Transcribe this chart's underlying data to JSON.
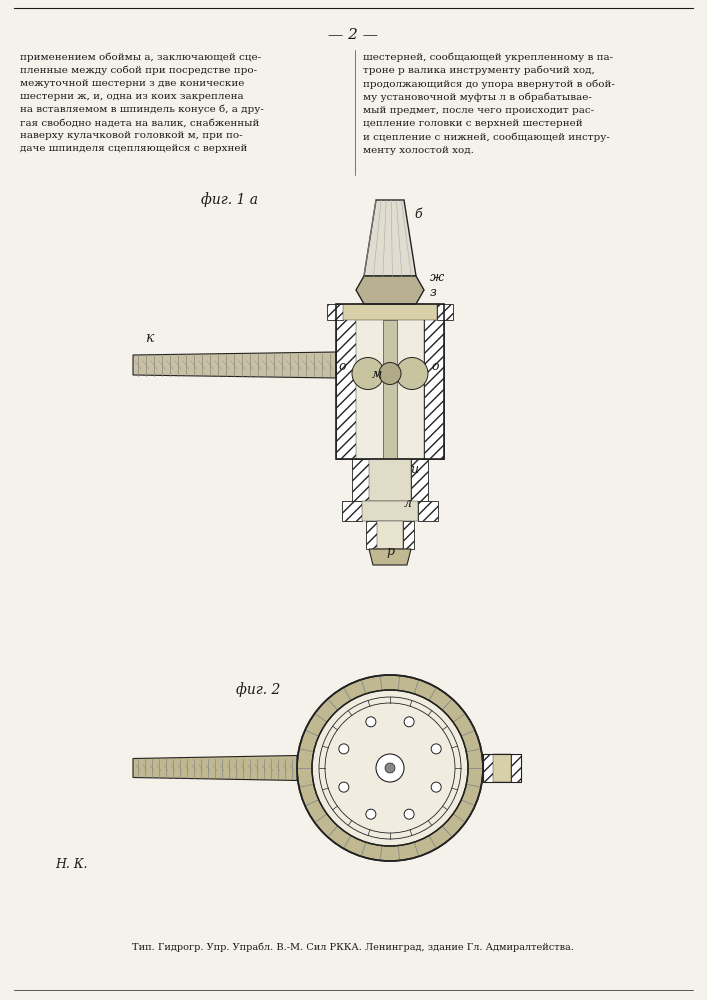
{
  "page_number": "— 2 —",
  "text_left": "применением обоймы а, заключающей сце-\nпленные между собой при посредстве про-\nмежуточной шестерни з две конические\nшестерни ж, и, одна из коих закреплена\nна вставляемом в шпиндель конусе б, а дру-\nгая свободно надета на валик, снабженный\nнаверху кулачковой головкой м, при по-\nдаче шпинделя сцепляющейся с верхней",
  "text_right": "шестерней, сообщающей укрепленному в па-\nтроне р валика инструменту рабочий ход,\nпродолжающийся до упора ввернутой в обой-\nму установочной муфты л в обрабатывае-\nмый предмет, после чего происходит рас-\nцепление головки с верхней шестерней\nи сцепление с нижней, сообщающей инстру-\nменту холостой ход.",
  "fig1_label": "фиг. 1 а",
  "fig2_label": "фиг. 2",
  "label_k": "к",
  "label_b": "б",
  "label_zh": "ж",
  "label_s": "з",
  "label_o1": "о",
  "label_o2": "о",
  "label_m": "м",
  "label_u": "и",
  "label_l": "л",
  "label_p": "р",
  "signature": "Н. К.",
  "footer": "Тип. Гидрогр. Упр. Упрабл. В.-М. Сил РККА. Ленинград, здание Гл. Адмиралтейства.",
  "bg_color": "#f5f2ec",
  "text_color": "#1a1a1a",
  "hatch_color": "#555555",
  "line_color": "#222222"
}
